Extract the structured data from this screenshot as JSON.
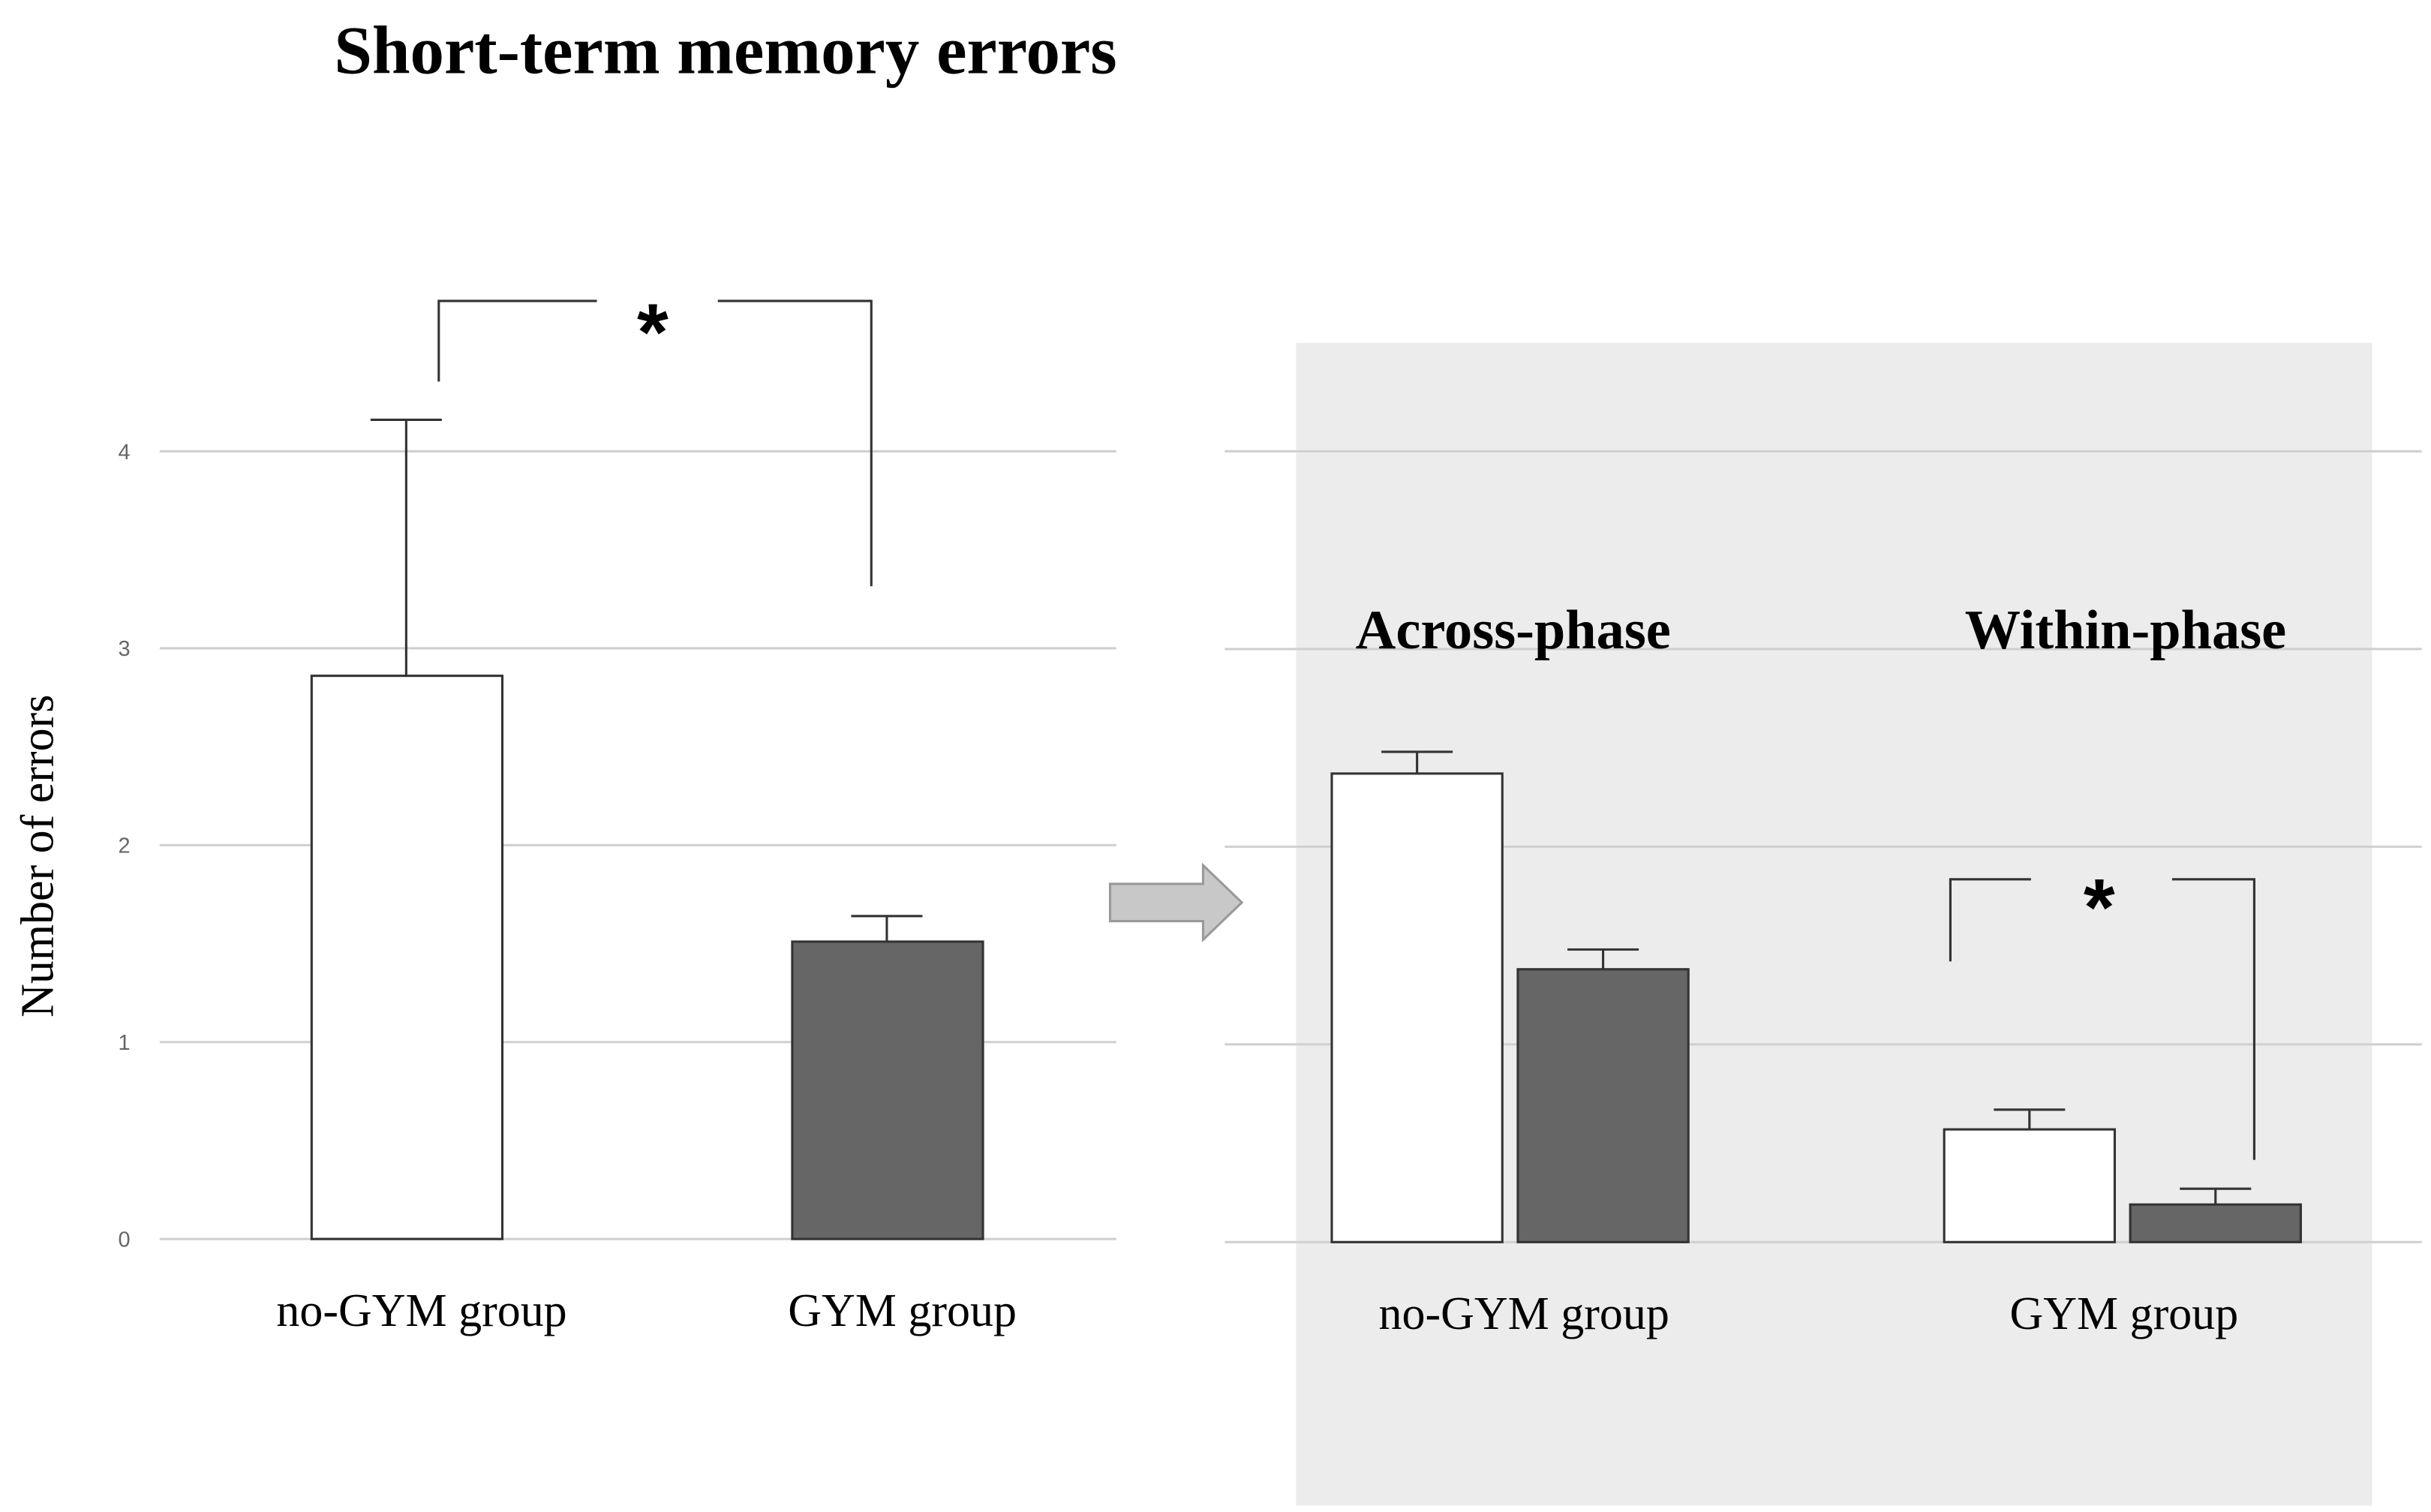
{
  "chart_data": [
    {
      "type": "bar",
      "title": "Short-term memory errors",
      "y_label": "Number of errors",
      "categories": [
        "no-GYM group",
        "GYM group"
      ],
      "values": [
        2.86,
        1.51
      ],
      "errors": [
        1.3,
        0.13
      ],
      "colors": [
        "#ffffff",
        "#666666"
      ],
      "ylim": [
        0,
        4
      ],
      "yticks": [
        0,
        1,
        2,
        3,
        4
      ],
      "grid": true,
      "significance": "*"
    },
    {
      "type": "grouped_bar",
      "categories": [
        "Across-phase",
        "Within-phase"
      ],
      "x_labels": [
        "no-GYM group",
        "GYM group"
      ],
      "series": [
        {
          "color": "#ffffff",
          "values": [
            2.37,
            0.57
          ],
          "errors": [
            0.11,
            0.1
          ]
        },
        {
          "color": "#666666",
          "values": [
            1.38,
            0.19
          ],
          "errors": [
            0.1,
            0.08
          ]
        }
      ],
      "ylim": [
        0,
        4
      ],
      "yticks": [
        0,
        1,
        2,
        3,
        4
      ],
      "grid": true,
      "tick_labels": false,
      "significance": "*"
    }
  ]
}
